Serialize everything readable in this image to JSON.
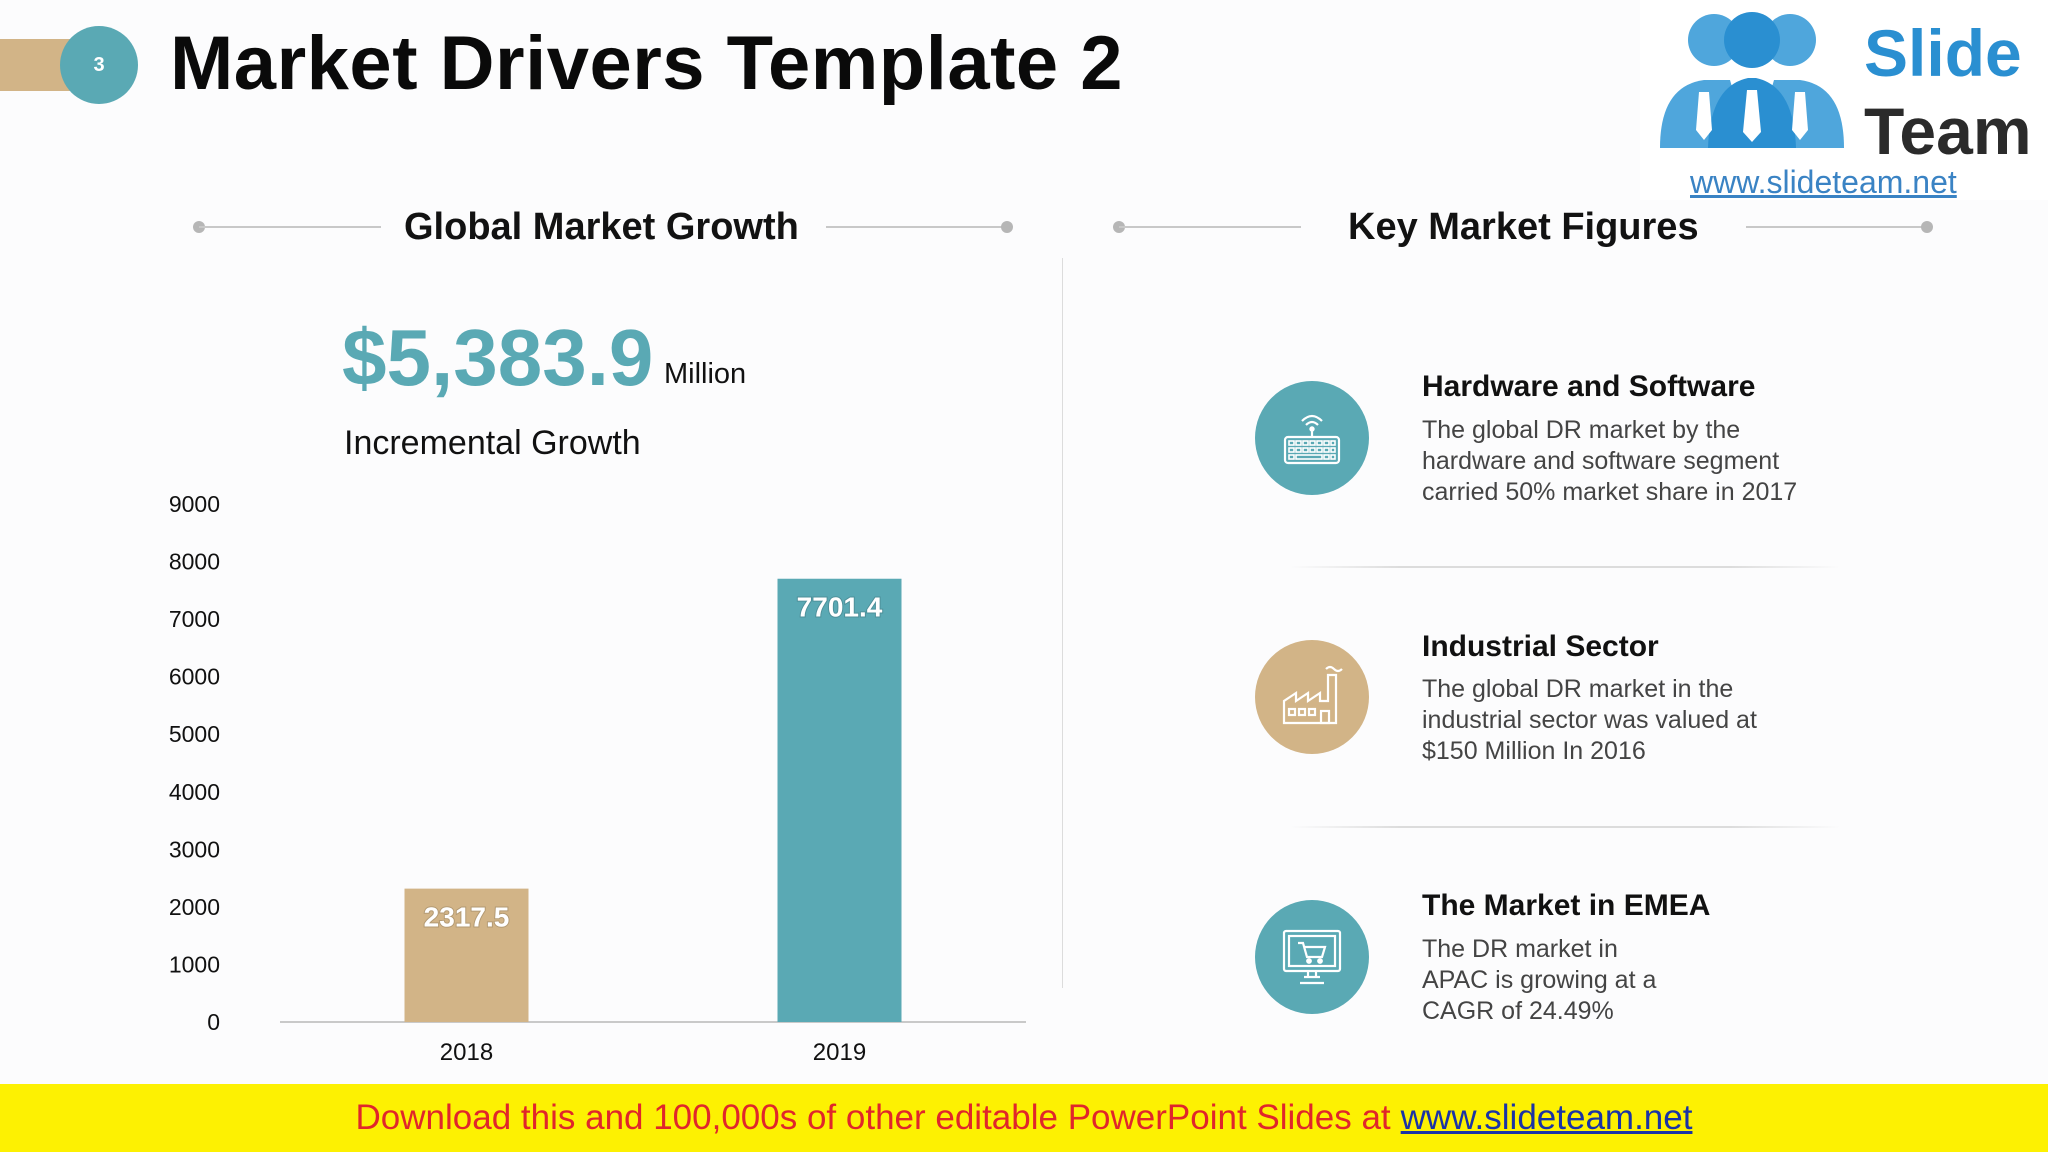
{
  "header": {
    "slide_number": "3",
    "title": "Market Drivers Template 2"
  },
  "logo": {
    "word1": "Slide",
    "word2": "Team",
    "url": "www.slideteam.net"
  },
  "left_section": {
    "title": "Global Market Growth",
    "kpi_value": "$5,383.9",
    "kpi_unit": "Million",
    "kpi_label": "Incremental Growth"
  },
  "chart_data": {
    "type": "bar",
    "categories": [
      "2018",
      "2019"
    ],
    "values": [
      2317.5,
      7701.4
    ],
    "value_labels": [
      "2317.5",
      "7701.4"
    ],
    "colors": [
      "#d2b487",
      "#5aa9b4"
    ],
    "ylim": [
      0,
      9000
    ],
    "yticks": [
      "0",
      "1000",
      "2000",
      "3000",
      "4000",
      "5000",
      "6000",
      "7000",
      "8000",
      "9000"
    ],
    "title": "",
    "xlabel": "",
    "ylabel": "",
    "grid": false
  },
  "right_section": {
    "title": "Key Market Figures",
    "items": [
      {
        "icon": "keyboard-wifi-icon",
        "color": "#5aa9b4",
        "title": "Hardware and Software",
        "lines": [
          "The global DR market by the",
          "hardware and software segment",
          "carried 50% market share in 2017"
        ]
      },
      {
        "icon": "factory-icon",
        "color": "#d2b487",
        "title": "Industrial Sector",
        "lines": [
          "The global DR market in the",
          "industrial sector was valued at",
          "$150 Million In 2016"
        ]
      },
      {
        "icon": "monitor-cart-icon",
        "color": "#5aa9b4",
        "title": "The Market in EMEA",
        "lines": [
          "The DR market in",
          "APAC is growing at a",
          "CAGR of 24.49%"
        ]
      }
    ]
  },
  "banner": {
    "text": "Download this and 100,000s of other editable PowerPoint Slides at",
    "link": "www.slideteam.net"
  }
}
